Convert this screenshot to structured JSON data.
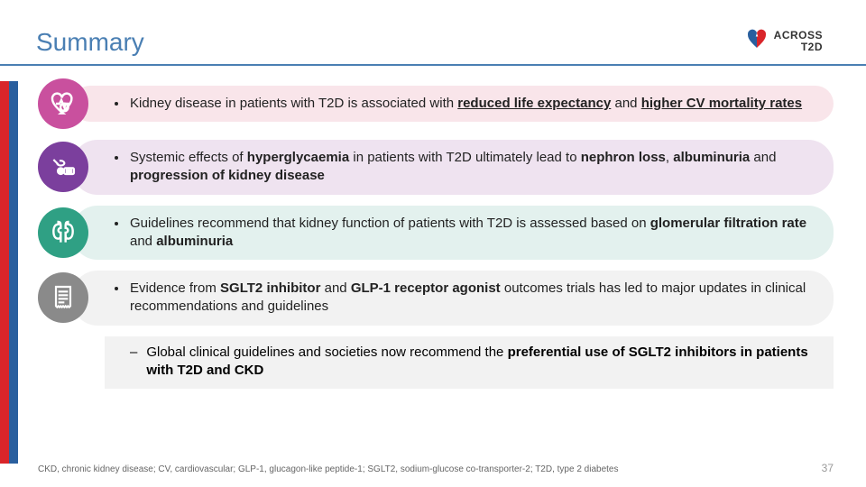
{
  "title": {
    "text": "Summary",
    "color": "#4a7fb3"
  },
  "logo": {
    "line1": "ACROSS",
    "line2": "T2D",
    "heart_colors": [
      "#2a5f9e",
      "#d9252a"
    ]
  },
  "side_bars": [
    "#d9252a",
    "#2a5f9e"
  ],
  "rows": [
    {
      "icon_bg": "#c9509e",
      "icon": "heart-pulse-icon",
      "box_bg": "#f9e5ea",
      "html": "Kidney disease in patients with T2D is associated with <b class=\"uline\">reduced life expectancy</b> and <b class=\"uline\">higher CV mortality rates</b>"
    },
    {
      "icon_bg": "#7b3f9d",
      "icon": "blood-drop-icon",
      "box_bg": "#efe3f0",
      "html": "Systemic effects of <b>hyperglycaemia</b> in patients with T2D ultimately lead to <b>nephron loss</b>, <b>albuminuria</b> and <b>progression of kidney disease</b>"
    },
    {
      "icon_bg": "#2fa084",
      "icon": "kidneys-icon",
      "box_bg": "#e3f1ee",
      "html": "Guidelines recommend that kidney function of patients with T2D is assessed based on <b>glomerular filtration rate</b> and <b>albuminuria</b>"
    },
    {
      "icon_bg": "#8a8a8a",
      "icon": "document-icon",
      "box_bg": "#f2f2f2",
      "html": "Evidence from <b>SGLT2 inhibitor</b> and <b>GLP-1 receptor agonist</b> outcomes trials has led to major updates in clinical recommendations and guidelines",
      "sub_html": "Global clinical guidelines and societies now recommend the <b>preferential use of SGLT2 inhibitors in patients with T2D and CKD</b>"
    }
  ],
  "footnote": "CKD, chronic kidney disease; CV, cardiovascular; GLP-1, glucagon-like peptide-1; SGLT2, sodium-glucose co-transporter-2; T2D, type 2 diabetes",
  "page_number": "37",
  "icons_svg": {
    "heart-pulse-icon": "<svg width='32' height='32' viewBox='0 0 24 24' fill='none' stroke='#fff' stroke-width='1.8'><path d='M12 20 C7 16 3 12 3 8 a4 4 0 0 1 8-1 a4 4 0 0 1 8 1 c0 4-4 8-9 12z'/><polyline points='6 12 9 12 10.5 9 13 15 14.5 12 18 12'/><circle cx='13' cy='15' r='3.2'/></svg>",
    "blood-drop-icon": "<svg width='32' height='32' viewBox='0 0 24 24' fill='none' stroke='#fff' stroke-width='1.6'><path d='M4 6 l4 4'/><path d='M7 9 a3 2 0 1 0 2-2'/><path d='M10 13 a2.5 2.5 0 1 0 0 5 a2.5 2.5 0 0 0 0-5 z' fill='#fff'/><rect x='13' y='13' width='8' height='5' rx='1'/><rect x='15' y='14.5' width='4' height='2' fill='#fff'/></svg>",
    "kidneys-icon": "<svg width='32' height='32' viewBox='0 0 24 24' fill='none' stroke='#fff' stroke-width='1.8'><path d='M8 5 C5 5 4 8 4 11 c0 3 1 6 4 6 c2 0 2-2 2-3 l0-2 c-1 0-2-1-2-2 s1-2 2-2 l0-2 c0-1 0-3-2-3 z'/><path d='M16 5 C19 5 20 8 20 11 c0 3-1 6-4 6 c-2 0-2-2-2-3 l0-2 c1 0 2-1 2-2 s-1-2-2-2 l0-2 c0-1 0-3 2-3 z'/><line x1='10' y1='14' x2='10' y2='20'/><line x1='14' y1='14' x2='14' y2='20'/></svg>",
    "document-icon": "<svg width='32' height='32' viewBox='0 0 24 24' fill='none' stroke='#fff' stroke-width='1.6'><path d='M6 3 h12 v16 l-1 1 l-1-1 l-1 1 l-1-1 l-1 1 l-1-1 l-1 1 l-1-1 l-1 1 l-1-1 l-1 1 l-1-1 z'/><line x1='8' y1='7' x2='16' y2='7'/><line x1='8' y1='10' x2='16' y2='10'/><line x1='8' y1='13' x2='16' y2='13'/><line x1='8' y1='16' x2='13' y2='16'/></svg>",
    "logo-heart": "<svg width='30' height='30' viewBox='0 0 24 24'><path fill='#2a5f9e' d='M12 20 C9 17 4 13 4 8.5 A4 4 0 0 1 12 7 z'/><path fill='#d9252a' d='M12 20 C15 17 20 13 20 8.5 A4 4 0 0 0 12 7 z'/><path fill='#fff' d='M12 7 l-1 3 l2 0 z'/></svg>"
  }
}
